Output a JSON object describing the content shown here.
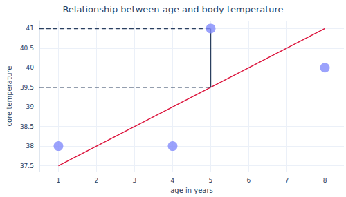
{
  "chart_data": {
    "type": "scatter",
    "title": "Relationship between age and body temperature",
    "x_label": "age in years",
    "y_label": "core temperature",
    "xlim": [
      0.5,
      8.5
    ],
    "xticks": [
      1,
      2,
      3,
      4,
      5,
      6,
      7,
      8
    ],
    "ylim": [
      37.35,
      41.2
    ],
    "yticks": [
      37.5,
      38,
      38.5,
      39,
      39.5,
      40,
      40.5,
      41
    ],
    "grid": true,
    "series": [
      {
        "type": "scatter",
        "marker": "circle",
        "color": "#828bfb",
        "x": [
          1,
          4,
          5,
          8
        ],
        "values": [
          38,
          38,
          41,
          40
        ]
      },
      {
        "type": "line",
        "line_style": "solid",
        "color": "#dc143c",
        "x": [
          1,
          8
        ],
        "values": [
          37.5,
          41
        ]
      },
      {
        "type": "line",
        "line_style": "dashed",
        "color": "#2a3f5f",
        "x": [
          0.5,
          5
        ],
        "values": [
          41,
          41
        ]
      },
      {
        "type": "line",
        "line_style": "dashed",
        "color": "#2a3f5f",
        "x": [
          0.5,
          5
        ],
        "values": [
          39.5,
          39.5
        ]
      },
      {
        "type": "line",
        "line_style": "solid",
        "color": "#2a3f5f",
        "x": [
          5,
          5
        ],
        "values": [
          39.5,
          41
        ]
      }
    ]
  }
}
